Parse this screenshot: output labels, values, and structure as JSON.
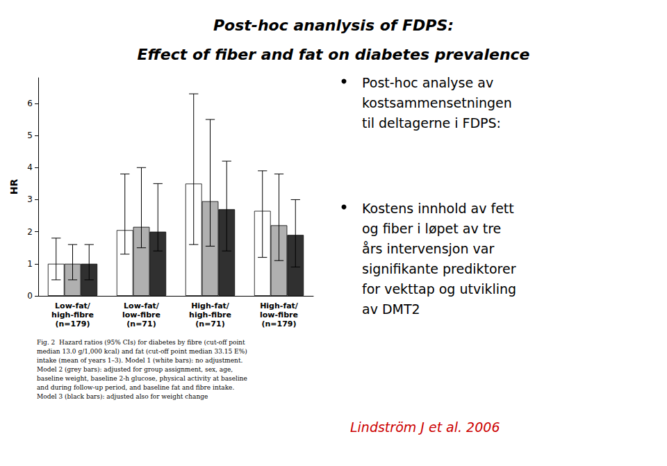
{
  "chart_data": {
    "type": "bar",
    "title": "Post-hoc ananlysis of FDPS:",
    "subtitle": "Effect of fiber and fat on diabetes prevalence",
    "ylabel": "HR",
    "categories": [
      "Low-fat/\nhigh-fibre\n(n=179)",
      "Low-fat/\nlow-fibre\n(n=71)",
      "High-fat/\nhigh-fibre\n(n=71)",
      "High-fat/\nlow-fibre\n(n=179)"
    ],
    "series": [
      {
        "color": "#ffffff",
        "values": [
          1.0,
          2.05,
          3.5,
          2.65
        ],
        "error_low": [
          0.5,
          1.3,
          1.6,
          1.2
        ],
        "error_high": [
          1.8,
          3.8,
          6.3,
          3.9
        ]
      },
      {
        "color": "#b0b0b0",
        "values": [
          1.0,
          2.15,
          2.95,
          2.2
        ],
        "error_low": [
          0.5,
          1.5,
          1.55,
          1.1
        ],
        "error_high": [
          1.6,
          4.0,
          5.5,
          3.8
        ]
      },
      {
        "color": "#303030",
        "values": [
          1.0,
          2.0,
          2.7,
          1.9
        ],
        "error_low": [
          0.5,
          1.4,
          1.4,
          0.9
        ],
        "error_high": [
          1.6,
          3.5,
          4.2,
          3.0
        ]
      }
    ],
    "ylim": [
      0,
      6.8
    ],
    "yticks": [
      0,
      1,
      2,
      3,
      4,
      5,
      6
    ],
    "grid": false,
    "annotations": [
      {
        "text": "Fig. 2  Hazard ratios (95% CIs) for diabetes by fibre (cut-off point\nmedian 13.0 g/1,000 kcal) and fat (cut-off point median 33.15 E%)\nintake (mean of years 1–3). Model 1 (white bars): no adjustment.\nModel 2 (grey bars): adjusted for group assignment, sex, age,\nbaseline weight, baseline 2-h glucose, physical activity at baseline\nand during follow-up period, and baseline fat and fibre intake.\nModel 3 (black bars): adjusted also for weight change"
      },
      {
        "text": "Post-hoc analyse av\nkostsammensetningen\ntil deltagerne i FDPS:"
      },
      {
        "text": "Kostens innhold av fett\nog fiber i løpet av tre\nårs intervensjon var\nsignifikante prediktorer\nfor vekttap og utvikling\nav DMT2"
      },
      {
        "text": "Lindström J et al. 2006",
        "color": "#cc0000"
      }
    ]
  }
}
